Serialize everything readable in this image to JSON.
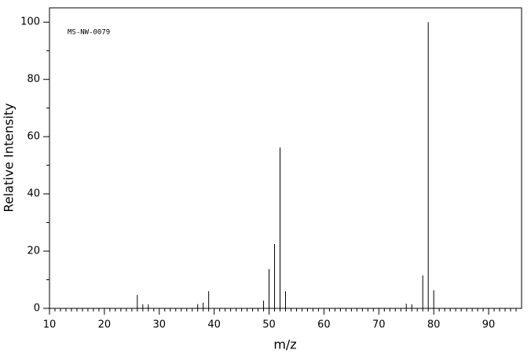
{
  "chart_data": {
    "type": "stem",
    "annotation": "MS-NW-0079",
    "xlabel": "m/z",
    "ylabel": "Relative Intensity",
    "x": [
      26,
      27,
      28,
      37,
      38,
      39,
      49,
      50,
      51,
      52,
      53,
      75,
      76,
      78,
      79,
      80
    ],
    "values": [
      4.7,
      1.4,
      1.4,
      1.5,
      2,
      6,
      2.7,
      13.7,
      22.5,
      56.2,
      6,
      1.6,
      1.4,
      11.5,
      100,
      6.3
    ],
    "color": "#000000",
    "xlim": [
      10,
      96
    ],
    "ylim": [
      0,
      105
    ],
    "xticks": [
      10,
      20,
      30,
      40,
      50,
      60,
      70,
      80,
      90
    ],
    "xminorticks": [
      11,
      12,
      13,
      14,
      15,
      16,
      17,
      18,
      19,
      21,
      22,
      23,
      24,
      25,
      26,
      27,
      28,
      29,
      31,
      32,
      33,
      34,
      35,
      36,
      37,
      38,
      39,
      41,
      42,
      43,
      44,
      45,
      46,
      47,
      48,
      49,
      51,
      52,
      53,
      54,
      55,
      56,
      57,
      58,
      59,
      61,
      62,
      63,
      64,
      65,
      66,
      67,
      68,
      69,
      71,
      72,
      73,
      74,
      75,
      76,
      77,
      78,
      79,
      81,
      82,
      83,
      84,
      85,
      86,
      87,
      88,
      89,
      91,
      92,
      93,
      94,
      95
    ],
    "yticks": [
      0,
      20,
      40,
      60,
      80,
      100
    ],
    "yminorticks": [
      10,
      30,
      50,
      70,
      90
    ]
  }
}
